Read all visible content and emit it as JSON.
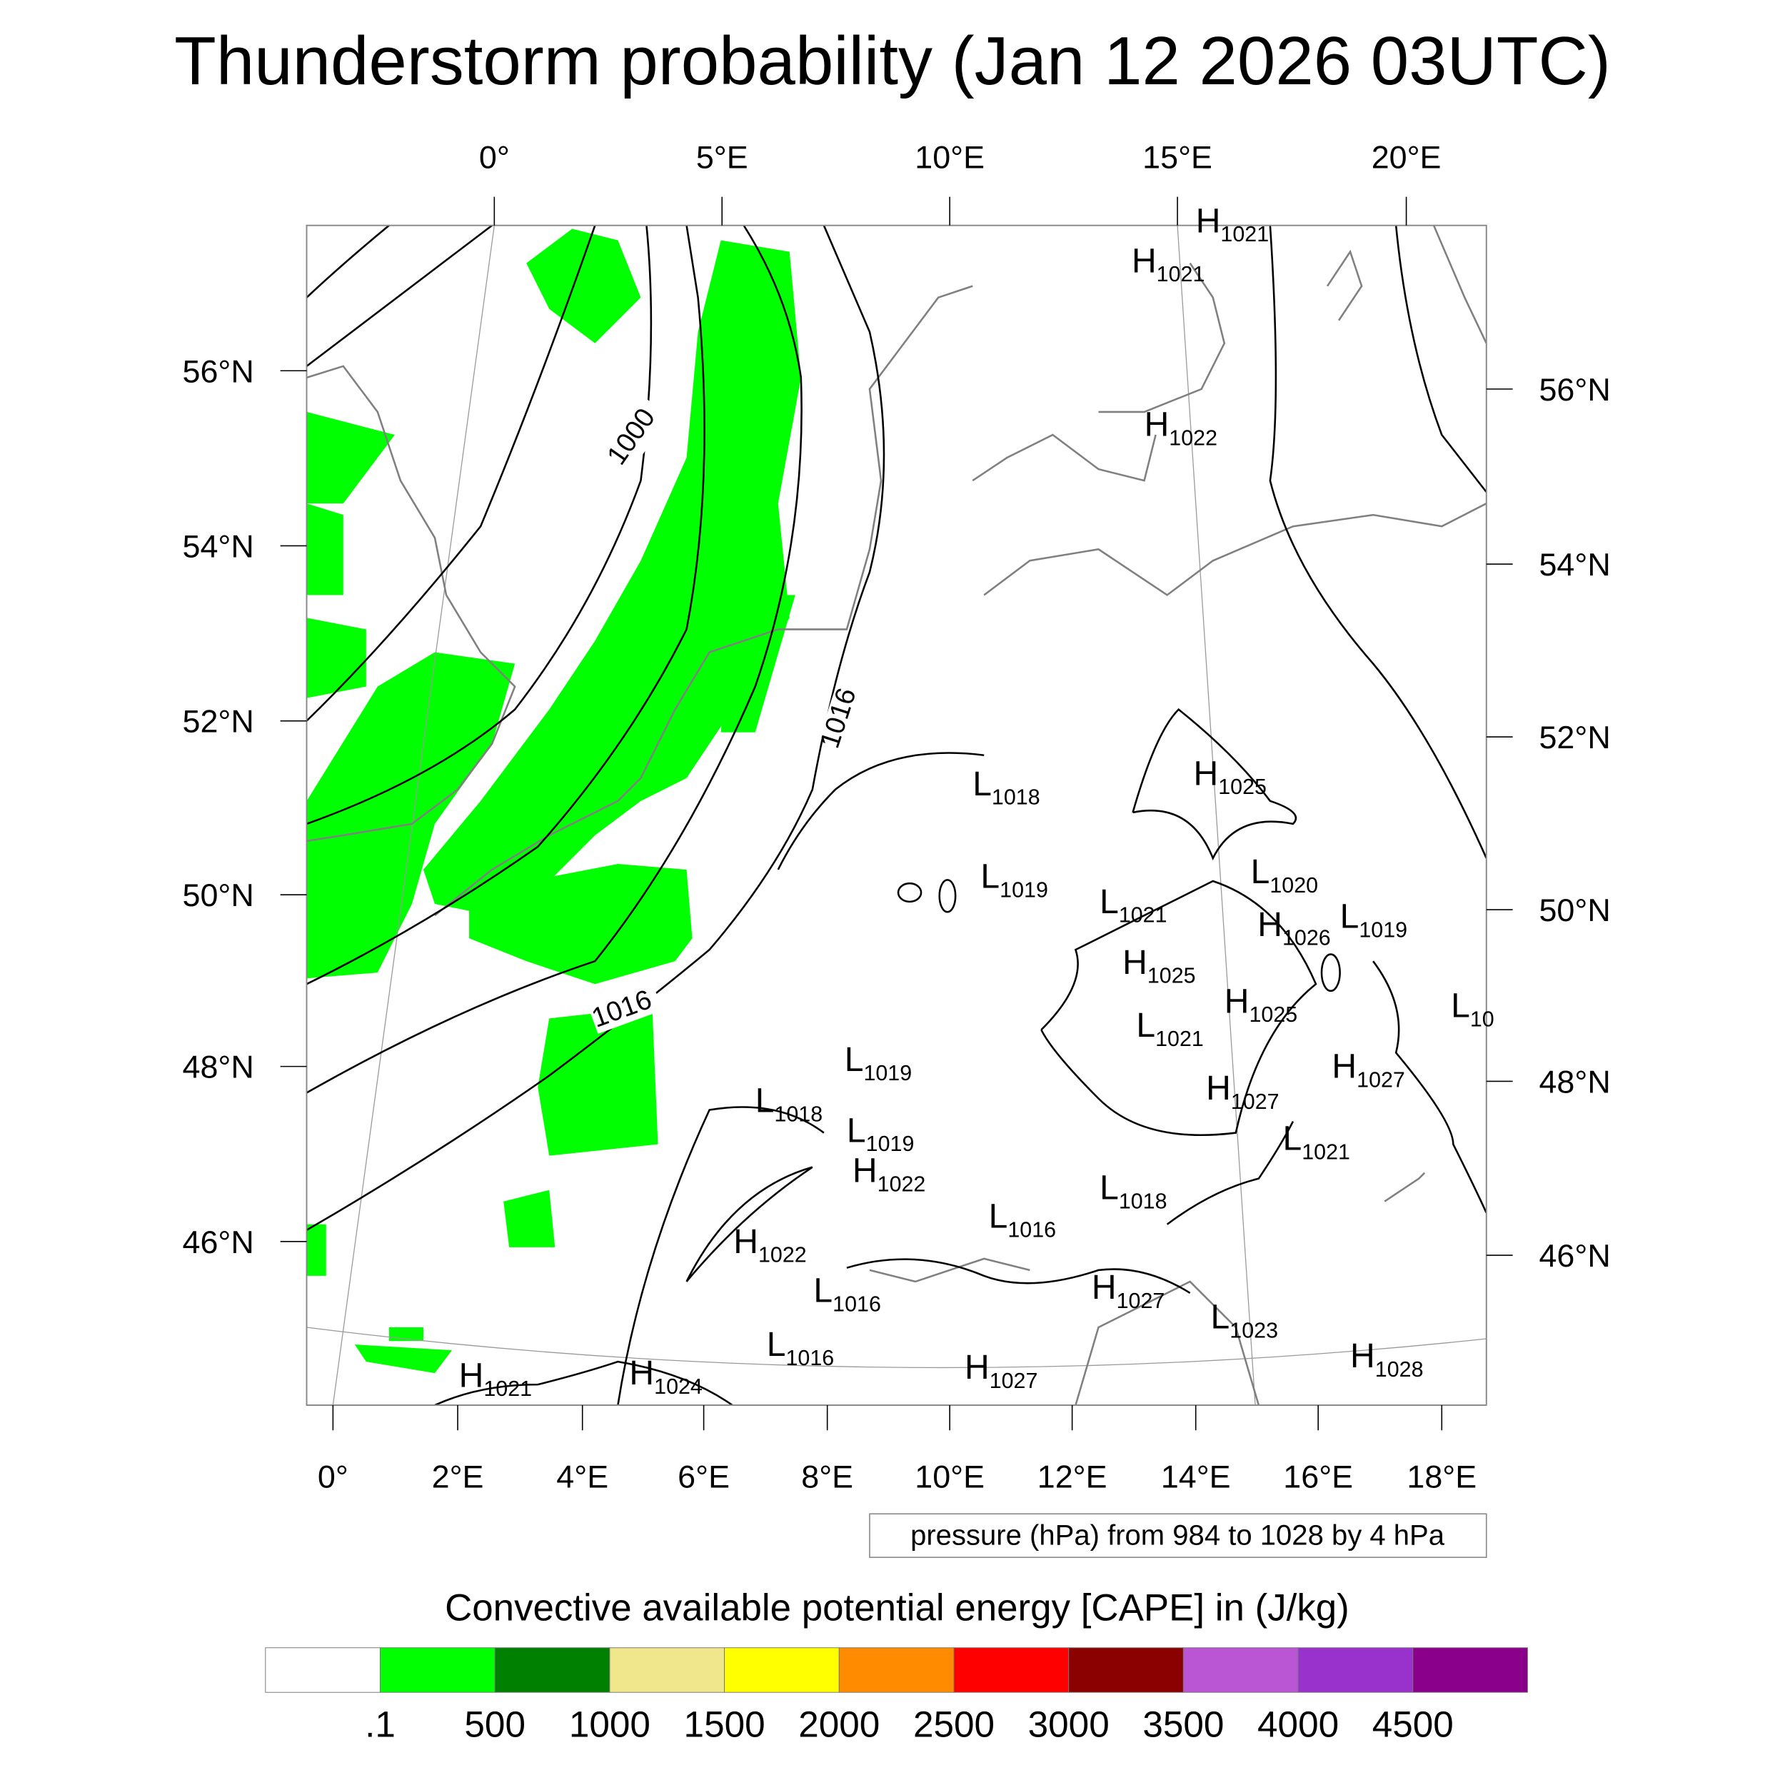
{
  "title": "Thunderstorm probability (Jan 12 2026 03UTC)",
  "axes": {
    "top_lon": [
      "0°",
      "5°E",
      "10°E",
      "15°E",
      "20°E"
    ],
    "bottom_lon": [
      "0°",
      "2°E",
      "4°E",
      "6°E",
      "8°E",
      "10°E",
      "12°E",
      "14°E",
      "16°E",
      "18°E"
    ],
    "left_lat": [
      "56°N",
      "54°N",
      "52°N",
      "50°N",
      "48°N",
      "46°N"
    ],
    "right_lat": [
      "56°N",
      "54°N",
      "52°N",
      "50°N",
      "48°N",
      "46°N"
    ]
  },
  "contour_labels": [
    "1000",
    "1016",
    "1016"
  ],
  "pressure_centers": [
    {
      "t": "H",
      "v": "1021"
    },
    {
      "t": "H",
      "v": "1021"
    },
    {
      "t": "H",
      "v": "1022"
    },
    {
      "t": "L",
      "v": "1018"
    },
    {
      "t": "H",
      "v": "1025"
    },
    {
      "t": "L",
      "v": "1019"
    },
    {
      "t": "L",
      "v": "1020"
    },
    {
      "t": "L",
      "v": "1021"
    },
    {
      "t": "H",
      "v": "1026"
    },
    {
      "t": "L",
      "v": "1019"
    },
    {
      "t": "H",
      "v": "1025"
    },
    {
      "t": "H",
      "v": "1025"
    },
    {
      "t": "L",
      "v": "1021"
    },
    {
      "t": "L",
      "v": "10"
    },
    {
      "t": "L",
      "v": "1019"
    },
    {
      "t": "H",
      "v": "1027"
    },
    {
      "t": "H",
      "v": "1027"
    },
    {
      "t": "L",
      "v": "1018"
    },
    {
      "t": "L",
      "v": "1019"
    },
    {
      "t": "H",
      "v": "1022"
    },
    {
      "t": "L",
      "v": "1021"
    },
    {
      "t": "L",
      "v": "1018"
    },
    {
      "t": "L",
      "v": "1016"
    },
    {
      "t": "H",
      "v": "1022"
    },
    {
      "t": "L",
      "v": "1016"
    },
    {
      "t": "H",
      "v": "1027"
    },
    {
      "t": "L",
      "v": "1023"
    },
    {
      "t": "L",
      "v": "1016"
    },
    {
      "t": "H",
      "v": "1028"
    },
    {
      "t": "H",
      "v": "1021"
    },
    {
      "t": "H",
      "v": "1024"
    },
    {
      "t": "H",
      "v": "1027"
    }
  ],
  "contour_info": "pressure (hPa) from 984 to 1028 by 4 hPa",
  "colorbar": {
    "title": "Convective available potential energy [CAPE] in (J/kg)",
    "colors": [
      "#ffffff",
      "#00ff00",
      "#008000",
      "#f0e68c",
      "#ffff00",
      "#ff8c00",
      "#ff0000",
      "#8b0000",
      "#ba55d3",
      "#9932cc",
      "#8b008b"
    ],
    "labels": [
      ".1",
      "500",
      "1000",
      "1500",
      "2000",
      "2500",
      "3000",
      "3500",
      "4000",
      "4500"
    ]
  },
  "colors": {
    "cape_fill": "#00ff00",
    "isobar": "#000000",
    "coast": "#808080"
  }
}
